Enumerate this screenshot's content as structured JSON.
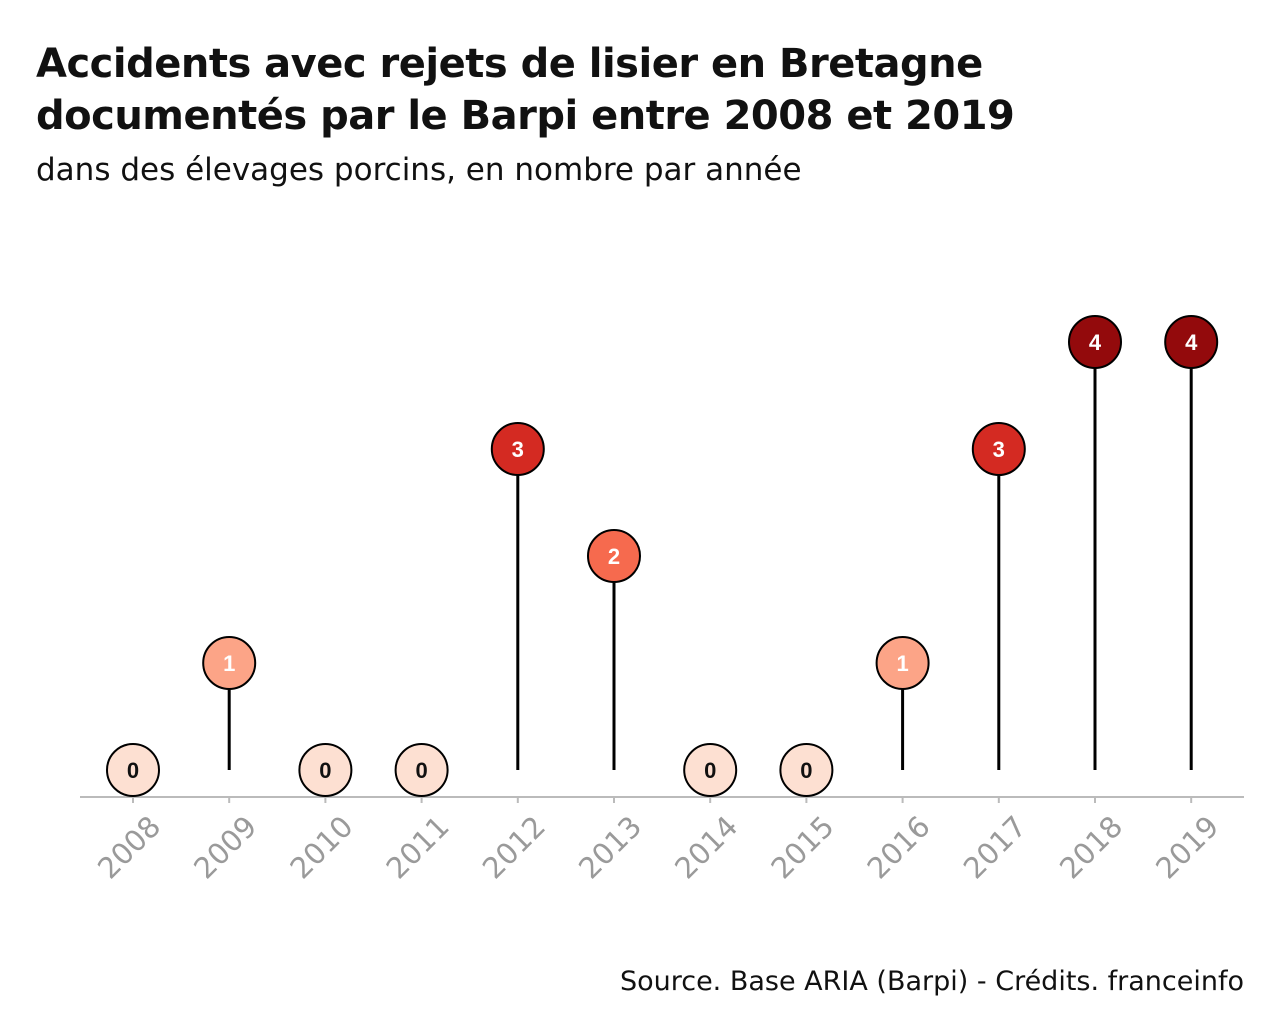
{
  "title": "Accidents avec rejets de lisier en Bretagne documentés par le Barpi entre 2008 et 2019",
  "subtitle": "dans des élevages porcins, en nombre par année",
  "source": "Source. Base ARIA (Barpi) - Crédits. franceinfo",
  "colors": {
    "level_0": "#fde0d2",
    "level_1": "#fca487",
    "level_2": "#f66a4e",
    "level_3": "#d42a22",
    "level_4": "#930a0c",
    "stem": "#000000",
    "axis": "#bbbbbb",
    "tick_label": "#9a9a9a"
  },
  "chart_data": {
    "type": "lollipop",
    "categories": [
      "2008",
      "2009",
      "2010",
      "2011",
      "2012",
      "2013",
      "2014",
      "2015",
      "2016",
      "2017",
      "2018",
      "2019"
    ],
    "values": [
      0,
      1,
      0,
      0,
      3,
      2,
      0,
      0,
      1,
      3,
      4,
      4
    ],
    "ylim": [
      0,
      4
    ],
    "grid": false,
    "xlabel": "",
    "ylabel": ""
  }
}
